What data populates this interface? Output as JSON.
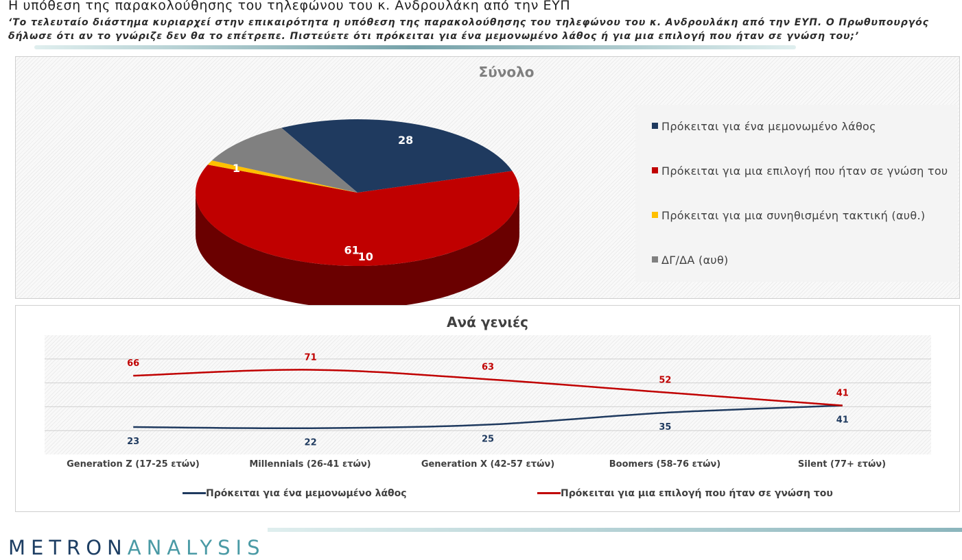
{
  "header": {
    "title": "Η υπόθεση της παρακολούθησης του τηλεφώνου του κ. Ανδρουλάκη από την ΕΥΠ",
    "question": "‘Το τελευταίο διάστημα κυριαρχεί στην επικαιρότητα η υπόθεση της παρακολούθησης του τηλεφώνου του κ. Ανδρουλάκη από την ΕΥΠ. Ο Πρωθυπουργός δήλωσε ότι αν το γνώριζε δεν θα το επέτρεπε. Πιστεύετε ότι πρόκειται για ένα μεμονωμένο λάθος ή για μια επιλογή που ήταν σε γνώση του;’"
  },
  "logo": {
    "part1": "METRON",
    "part2": "ANALYSIS"
  },
  "chart_data": [
    {
      "type": "pie",
      "title": "Σύνολο",
      "categories": [
        "Πρόκειται για ένα μεμονωμένο λάθος",
        "Πρόκειται για μια επιλογή που ήταν σε γνώση του",
        "Πρόκειται για μια συνηθισμένη τακτική (αυθ.)",
        "ΔΓ/ΔΑ (αυθ)"
      ],
      "values": [
        28,
        61,
        1,
        10
      ],
      "colors": [
        "#1f3a5f",
        "#c00000",
        "#ffc000",
        "#808080"
      ],
      "legend_position": "right",
      "style": "3d"
    },
    {
      "type": "line",
      "title": "Ανά γενιές",
      "categories": [
        "Generation Z (17-25 ετών)",
        "Millennials (26-41 ετών)",
        "Generation X (42-57 ετών)",
        "Boomers (58-76 ετών)",
        "Silent (77+ ετών)"
      ],
      "series": [
        {
          "name": "Πρόκειται για ένα μεμονωμένο λάθος",
          "values": [
            23,
            22,
            25,
            35,
            41
          ],
          "color": "#1f3a5f"
        },
        {
          "name": "Πρόκειται για μια  επιλογή που ήταν σε γνώση του",
          "values": [
            66,
            71,
            63,
            52,
            41
          ],
          "color": "#c00000"
        }
      ],
      "ylim": [
        0,
        100
      ],
      "grid": true,
      "legend_position": "bottom"
    }
  ]
}
